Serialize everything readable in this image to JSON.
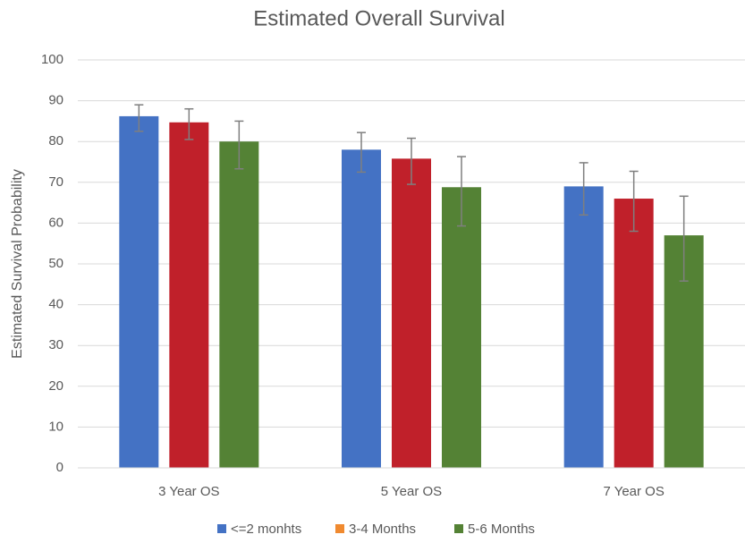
{
  "chart_data": {
    "type": "bar",
    "title": "Estimated Overall Survival",
    "y_label": "Estimated Survival Probability",
    "categories": [
      "3 Year OS",
      "5 Year OS",
      "7 Year OS"
    ],
    "series": [
      {
        "name": "<=2 monhts",
        "color": "#4472c4",
        "legend_color": "#4472c4",
        "values": [
          86.2,
          78,
          69
        ],
        "ci_lower": [
          82.5,
          72.5,
          62
        ],
        "ci_upper": [
          89,
          82.2,
          74.8
        ]
      },
      {
        "name": "3-4 Months",
        "color": "#c0202a",
        "legend_color": "#f08a30",
        "values": [
          84.7,
          75.8,
          66
        ],
        "ci_lower": [
          80.5,
          69.5,
          58
        ],
        "ci_upper": [
          88,
          80.8,
          72.7
        ]
      },
      {
        "name": "5-6 Months",
        "color": "#548235",
        "legend_color": "#548235",
        "values": [
          80,
          68.8,
          57
        ],
        "ci_lower": [
          73.3,
          59.3,
          45.8
        ],
        "ci_upper": [
          85,
          76.3,
          66.6
        ]
      }
    ],
    "ylim": [
      0,
      100
    ],
    "yticks": [
      0,
      10,
      20,
      30,
      40,
      50,
      60,
      70,
      80,
      90,
      100
    ],
    "grid": true,
    "legend": "bottom"
  }
}
